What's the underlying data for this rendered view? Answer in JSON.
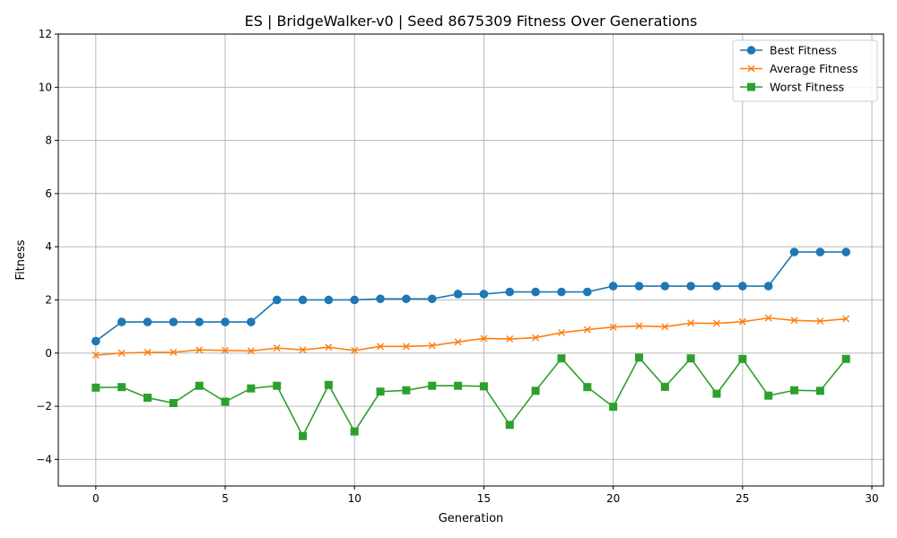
{
  "chart_data": {
    "type": "line",
    "title": "ES | BridgeWalker-v0 | Seed 8675309 Fitness Over Generations",
    "xlabel": "Generation",
    "ylabel": "Fitness",
    "xlim": [
      -1.45,
      30.45
    ],
    "ylim": [
      -5,
      12
    ],
    "xticks": [
      0,
      5,
      10,
      15,
      20,
      25,
      30
    ],
    "yticks": [
      -4,
      -2,
      0,
      2,
      4,
      6,
      8,
      10,
      12
    ],
    "xtick_labels": [
      "0",
      "5",
      "10",
      "15",
      "20",
      "25",
      "30"
    ],
    "ytick_labels": [
      "−4",
      "−2",
      "0",
      "2",
      "4",
      "6",
      "8",
      "10",
      "12"
    ],
    "grid": true,
    "legend_position": "top-right",
    "x": [
      0,
      1,
      2,
      3,
      4,
      5,
      6,
      7,
      8,
      9,
      10,
      11,
      12,
      13,
      14,
      15,
      16,
      17,
      18,
      19,
      20,
      21,
      22,
      23,
      24,
      25,
      26,
      27,
      28,
      29
    ],
    "series": [
      {
        "name": "Best Fitness",
        "color": "#1f77b4",
        "marker": "circle",
        "values": [
          0.45,
          1.17,
          1.17,
          1.17,
          1.17,
          1.17,
          1.17,
          2.0,
          2.0,
          2.0,
          2.0,
          2.04,
          2.04,
          2.04,
          2.22,
          2.22,
          2.3,
          2.3,
          2.3,
          2.3,
          2.52,
          2.52,
          2.52,
          2.52,
          2.52,
          2.52,
          2.52,
          3.8,
          3.8,
          3.8
        ]
      },
      {
        "name": "Average Fitness",
        "color": "#ff7f0e",
        "marker": "x",
        "values": [
          -0.08,
          0.0,
          0.03,
          0.03,
          0.12,
          0.1,
          0.08,
          0.19,
          0.12,
          0.22,
          0.1,
          0.25,
          0.25,
          0.28,
          0.42,
          0.55,
          0.53,
          0.58,
          0.77,
          0.88,
          0.98,
          1.02,
          0.99,
          1.13,
          1.12,
          1.18,
          1.32,
          1.23,
          1.2,
          1.29
        ]
      },
      {
        "name": "Worst Fitness",
        "color": "#2ca02c",
        "marker": "square",
        "values": [
          -1.3,
          -1.28,
          -1.68,
          -1.88,
          -1.23,
          -1.83,
          -1.33,
          -1.23,
          -3.12,
          -1.2,
          -2.95,
          -1.45,
          -1.4,
          -1.23,
          -1.23,
          -1.25,
          -2.7,
          -1.42,
          -0.2,
          -1.28,
          -2.02,
          -0.17,
          -1.27,
          -0.2,
          -1.53,
          -0.22,
          -1.6,
          -1.4,
          -1.42,
          -0.22
        ]
      }
    ]
  }
}
